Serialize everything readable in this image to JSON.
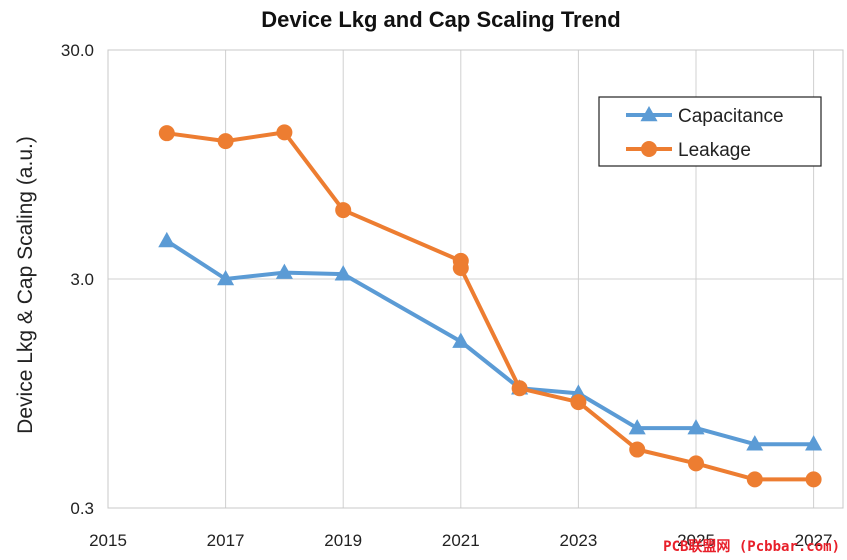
{
  "chart_data": {
    "type": "line",
    "title": "Device Lkg and Cap Scaling Trend",
    "xlabel": "",
    "ylabel": "Device Lkg & Cap Scaling (a.u.)",
    "yscale": "log",
    "ylim": [
      0.3,
      30.0
    ],
    "xlim": [
      2015,
      2027.5
    ],
    "x_ticks": [
      2015,
      2017,
      2019,
      2021,
      2023,
      2025,
      2027
    ],
    "x_tick_labels": [
      "2015",
      "2017",
      "2019",
      "2021",
      "2023",
      "2025",
      "2027"
    ],
    "y_ticks": [
      0.3,
      3.0,
      30.0
    ],
    "y_tick_labels": [
      "0.3",
      "3.0",
      "30.0"
    ],
    "grid": true,
    "legend_position": "top-right",
    "series": [
      {
        "name": "Capacitance",
        "color": "#5b9bd5",
        "marker": "triangle",
        "x": [
          2016,
          2017,
          2018,
          2019,
          2021,
          2022,
          2023,
          2024,
          2025,
          2026,
          2027
        ],
        "values": [
          4.4,
          3.0,
          3.2,
          3.15,
          1.6,
          1.0,
          0.95,
          0.67,
          0.67,
          0.57,
          0.57
        ]
      },
      {
        "name": "Leakage",
        "color": "#ed7d31",
        "marker": "circle",
        "x": [
          2016,
          2017,
          2018,
          2019,
          2021,
          2021,
          2022,
          2023,
          2024,
          2025,
          2026,
          2027
        ],
        "values": [
          13.0,
          12.0,
          13.1,
          6.0,
          3.6,
          3.35,
          1.0,
          0.87,
          0.54,
          0.47,
          0.4,
          0.4
        ]
      }
    ]
  },
  "watermark": {
    "text": "PCB联盟网 (Pcbbar.com)",
    "color": "#e8202a"
  }
}
